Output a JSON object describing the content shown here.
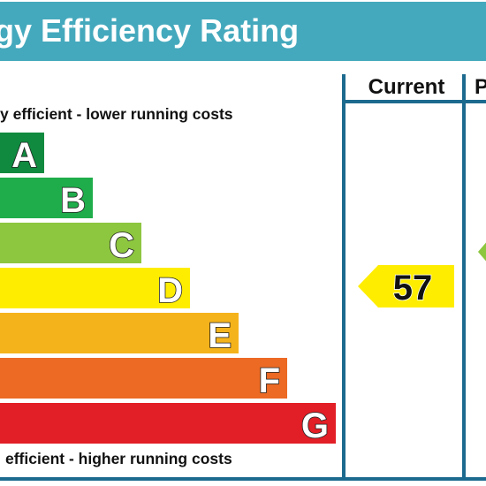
{
  "header": {
    "title": "gy Efficiency Rating"
  },
  "columns": {
    "current_label": "Current",
    "potential_label": "P"
  },
  "captions": {
    "top": "y efficient - lower running costs",
    "bottom": "efficient - higher running costs"
  },
  "colors": {
    "frame": "#1d6a8f",
    "header_bg": "#45a9bd",
    "header_text": "#ffffff",
    "band_letter_fill": "#ffffff",
    "band_letter_stroke": "#222222",
    "text": "#111111"
  },
  "chart_data": {
    "type": "bar",
    "categories": [
      "A",
      "B",
      "C",
      "D",
      "E",
      "F",
      "G"
    ],
    "band_colors": [
      "#0f8a3f",
      "#1fad4b",
      "#8dc63f",
      "#ffed00",
      "#f5b31b",
      "#ec6a24",
      "#e21e26"
    ],
    "current": {
      "value": 57,
      "band": "D",
      "color": "#ffed00"
    },
    "potential": {
      "band": "C",
      "color": "#8dc63f",
      "value": ""
    }
  }
}
